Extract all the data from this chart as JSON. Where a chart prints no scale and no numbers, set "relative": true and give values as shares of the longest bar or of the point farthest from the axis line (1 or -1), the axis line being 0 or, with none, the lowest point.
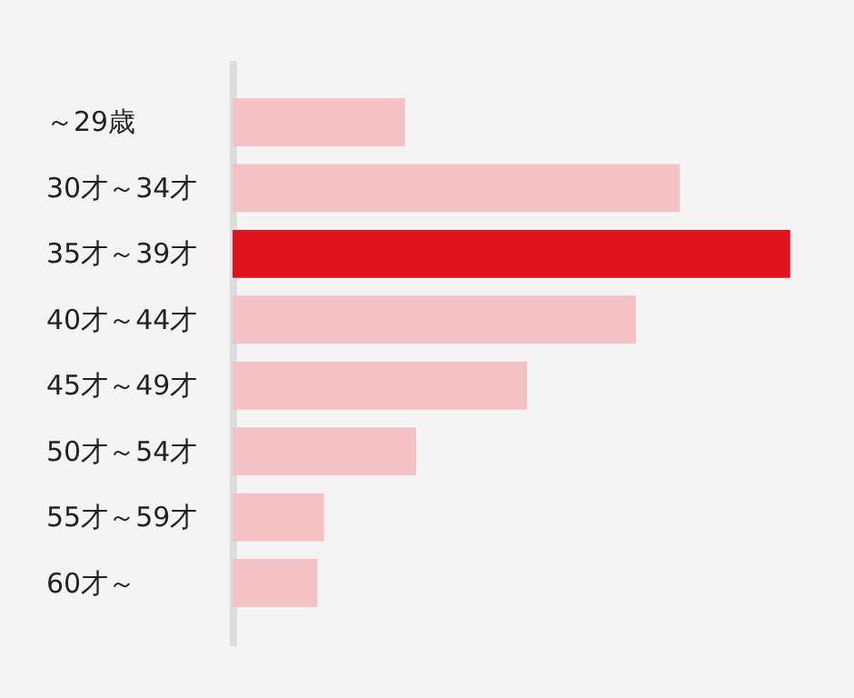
{
  "chart_data": {
    "type": "bar",
    "orientation": "horizontal",
    "relative": true,
    "categories": [
      "～29歳",
      "30才～34才",
      "35才～39才",
      "40才～44才",
      "45才～49才",
      "50才～54才",
      "55才～59才",
      "60才～"
    ],
    "values": [
      0.309,
      0.802,
      1,
      0.723,
      0.528,
      0.329,
      0.164,
      0.152
    ],
    "colors": [
      "#f4c1c5",
      "#f4c1c5",
      "#e0131f",
      "#f4c1c5",
      "#f4c1c5",
      "#f4c1c5",
      "#f4c1c5",
      "#f4c1c5"
    ]
  }
}
